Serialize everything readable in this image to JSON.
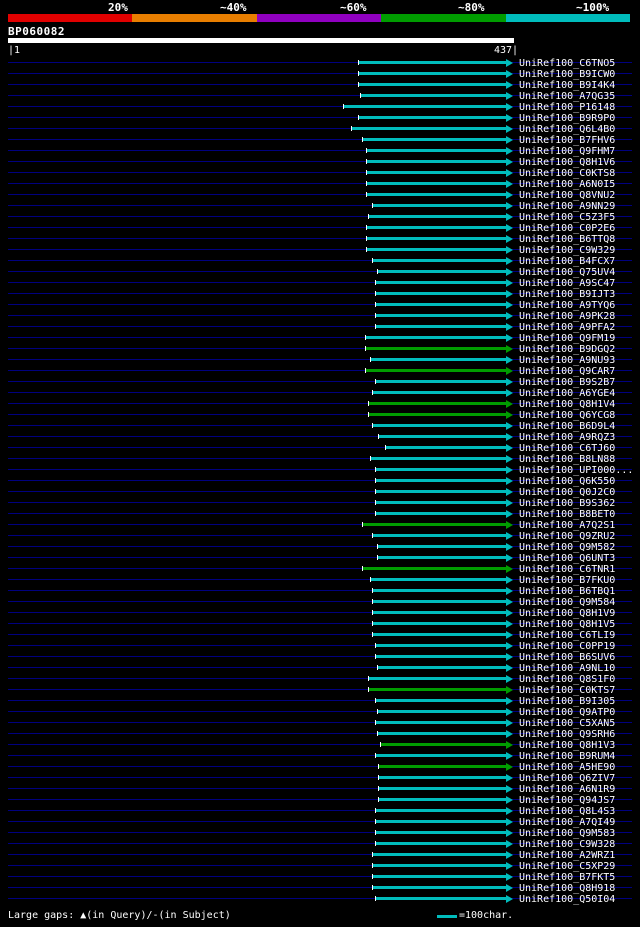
{
  "header": {
    "scale": {
      "labels": [
        "20%",
        "~40%",
        "~60%",
        "~80%",
        "~100%"
      ],
      "colors": [
        "#e10000",
        "#e87e00",
        "#9000c0",
        "#009c00",
        "#00bcbc"
      ]
    },
    "query_id": "BP060082",
    "axis": {
      "start_label": "|1",
      "end_label": "437|"
    }
  },
  "footer": {
    "gaps_note": "Large gaps: ▲(in Query)/-(in Subject)",
    "scale_note": "=100char."
  },
  "chart_data": {
    "type": "bar",
    "orientation": "horizontal",
    "title": "BP060082",
    "query_length": 437,
    "x_range": [
      1,
      437
    ],
    "arrow_at_end": true,
    "identity_bins": [
      "20%",
      "~40%",
      "~60%",
      "~80%",
      "~100%"
    ],
    "identity_colors": {
      "20%": "#e10000",
      "~40%": "#e87e00",
      "~60%": "#9000c0",
      "~80%": "#009c00",
      "~100%": "#00bcbc"
    },
    "hits": [
      {
        "id": "UniRef100_C6TNO5",
        "start": 302,
        "end": 437,
        "identity": "~100%"
      },
      {
        "id": "UniRef100_B9ICW0",
        "start": 302,
        "end": 437,
        "identity": "~100%"
      },
      {
        "id": "UniRef100_B9I4K4",
        "start": 302,
        "end": 437,
        "identity": "~100%"
      },
      {
        "id": "UniRef100_A7QG35",
        "start": 303,
        "end": 437,
        "identity": "~100%"
      },
      {
        "id": "UniRef100_P16148",
        "start": 289,
        "end": 437,
        "identity": "~100%"
      },
      {
        "id": "UniRef100_B9R9P0",
        "start": 302,
        "end": 437,
        "identity": "~100%"
      },
      {
        "id": "UniRef100_Q6L4B0",
        "start": 296,
        "end": 437,
        "identity": "~100%"
      },
      {
        "id": "UniRef100_B7FHV6",
        "start": 305,
        "end": 437,
        "identity": "~100%"
      },
      {
        "id": "UniRef100_Q9FHM7",
        "start": 309,
        "end": 437,
        "identity": "~100%"
      },
      {
        "id": "UniRef100_Q8H1V6",
        "start": 309,
        "end": 437,
        "identity": "~100%"
      },
      {
        "id": "UniRef100_C0KTS8",
        "start": 309,
        "end": 437,
        "identity": "~100%"
      },
      {
        "id": "UniRef100_A6N0I5",
        "start": 309,
        "end": 437,
        "identity": "~100%"
      },
      {
        "id": "UniRef100_Q8VNU2",
        "start": 309,
        "end": 437,
        "identity": "~100%"
      },
      {
        "id": "UniRef100_A9NN29",
        "start": 314,
        "end": 437,
        "identity": "~100%"
      },
      {
        "id": "UniRef100_C5Z3F5",
        "start": 310,
        "end": 437,
        "identity": "~100%"
      },
      {
        "id": "UniRef100_C0P2E6",
        "start": 309,
        "end": 437,
        "identity": "~100%"
      },
      {
        "id": "UniRef100_B6TTQ8",
        "start": 309,
        "end": 437,
        "identity": "~100%"
      },
      {
        "id": "UniRef100_C9W329",
        "start": 309,
        "end": 437,
        "identity": "~100%"
      },
      {
        "id": "UniRef100_B4FCX7",
        "start": 314,
        "end": 437,
        "identity": "~100%"
      },
      {
        "id": "UniRef100_Q75UV4",
        "start": 318,
        "end": 437,
        "identity": "~100%"
      },
      {
        "id": "UniRef100_A9SC47",
        "start": 316,
        "end": 437,
        "identity": "~100%"
      },
      {
        "id": "UniRef100_B9IJT3",
        "start": 316,
        "end": 437,
        "identity": "~100%"
      },
      {
        "id": "UniRef100_A9TYQ6",
        "start": 316,
        "end": 437,
        "identity": "~100%"
      },
      {
        "id": "UniRef100_A9PK28",
        "start": 316,
        "end": 437,
        "identity": "~100%"
      },
      {
        "id": "UniRef100_A9PFA2",
        "start": 316,
        "end": 437,
        "identity": "~100%"
      },
      {
        "id": "UniRef100_Q9FM19",
        "start": 308,
        "end": 437,
        "identity": "~100%"
      },
      {
        "id": "UniRef100_B9DGQ2",
        "start": 308,
        "end": 437,
        "identity": "~80%"
      },
      {
        "id": "UniRef100_A9NU93",
        "start": 312,
        "end": 437,
        "identity": "~100%"
      },
      {
        "id": "UniRef100_Q9CAR7",
        "start": 308,
        "end": 437,
        "identity": "~80%"
      },
      {
        "id": "UniRef100_B9S2B7",
        "start": 316,
        "end": 437,
        "identity": "~100%"
      },
      {
        "id": "UniRef100_A6YGE4",
        "start": 314,
        "end": 437,
        "identity": "~100%"
      },
      {
        "id": "UniRef100_Q8H1V4",
        "start": 310,
        "end": 437,
        "identity": "~80%"
      },
      {
        "id": "UniRef100_Q6YCG8",
        "start": 310,
        "end": 437,
        "identity": "~80%"
      },
      {
        "id": "UniRef100_B6D9L4",
        "start": 314,
        "end": 437,
        "identity": "~100%"
      },
      {
        "id": "UniRef100_A9RQZ3",
        "start": 319,
        "end": 437,
        "identity": "~100%"
      },
      {
        "id": "UniRef100_C6TJ60",
        "start": 325,
        "end": 437,
        "identity": "~100%"
      },
      {
        "id": "UniRef100_B8LN88",
        "start": 312,
        "end": 437,
        "identity": "~100%"
      },
      {
        "id": "UniRef100_UPI000...",
        "start": 316,
        "end": 437,
        "identity": "~100%"
      },
      {
        "id": "UniRef100_Q6K550",
        "start": 316,
        "end": 437,
        "identity": "~100%"
      },
      {
        "id": "UniRef100_Q0J2C0",
        "start": 316,
        "end": 437,
        "identity": "~100%"
      },
      {
        "id": "UniRef100_B9S362",
        "start": 316,
        "end": 437,
        "identity": "~100%"
      },
      {
        "id": "UniRef100_B8BET0",
        "start": 316,
        "end": 437,
        "identity": "~100%"
      },
      {
        "id": "UniRef100_A7Q2S1",
        "start": 305,
        "end": 437,
        "identity": "~80%"
      },
      {
        "id": "UniRef100_Q9ZRU2",
        "start": 314,
        "end": 437,
        "identity": "~100%"
      },
      {
        "id": "UniRef100_Q9M582",
        "start": 318,
        "end": 437,
        "identity": "~100%"
      },
      {
        "id": "UniRef100_Q6UNT3",
        "start": 318,
        "end": 437,
        "identity": "~100%"
      },
      {
        "id": "UniRef100_C6TNR1",
        "start": 305,
        "end": 437,
        "identity": "~80%"
      },
      {
        "id": "UniRef100_B7FKU0",
        "start": 312,
        "end": 437,
        "identity": "~100%"
      },
      {
        "id": "UniRef100_B6TBQ1",
        "start": 314,
        "end": 437,
        "identity": "~100%"
      },
      {
        "id": "UniRef100_Q9M584",
        "start": 314,
        "end": 437,
        "identity": "~100%"
      },
      {
        "id": "UniRef100_Q8H1V9",
        "start": 314,
        "end": 437,
        "identity": "~100%"
      },
      {
        "id": "UniRef100_Q8H1V5",
        "start": 314,
        "end": 437,
        "identity": "~100%"
      },
      {
        "id": "UniRef100_C6TLI9",
        "start": 314,
        "end": 437,
        "identity": "~100%"
      },
      {
        "id": "UniRef100_C0PP19",
        "start": 316,
        "end": 437,
        "identity": "~100%"
      },
      {
        "id": "UniRef100_B6SUV6",
        "start": 316,
        "end": 437,
        "identity": "~100%"
      },
      {
        "id": "UniRef100_A9NL10",
        "start": 318,
        "end": 437,
        "identity": "~100%"
      },
      {
        "id": "UniRef100_Q8S1F0",
        "start": 310,
        "end": 437,
        "identity": "~100%"
      },
      {
        "id": "UniRef100_C0KTS7",
        "start": 310,
        "end": 437,
        "identity": "~80%"
      },
      {
        "id": "UniRef100_B9I305",
        "start": 316,
        "end": 437,
        "identity": "~100%"
      },
      {
        "id": "UniRef100_Q9ATP0",
        "start": 318,
        "end": 437,
        "identity": "~100%"
      },
      {
        "id": "UniRef100_C5XAN5",
        "start": 316,
        "end": 437,
        "identity": "~100%"
      },
      {
        "id": "UniRef100_Q9SRH6",
        "start": 318,
        "end": 437,
        "identity": "~100%"
      },
      {
        "id": "UniRef100_Q8H1V3",
        "start": 321,
        "end": 437,
        "identity": "~80%"
      },
      {
        "id": "UniRef100_B9RUM4",
        "start": 316,
        "end": 437,
        "identity": "~100%"
      },
      {
        "id": "UniRef100_A5HE90",
        "start": 319,
        "end": 437,
        "identity": "~80%"
      },
      {
        "id": "UniRef100_Q6ZIV7",
        "start": 319,
        "end": 437,
        "identity": "~100%"
      },
      {
        "id": "UniRef100_A6N1R9",
        "start": 319,
        "end": 437,
        "identity": "~100%"
      },
      {
        "id": "UniRef100_Q94JS7",
        "start": 319,
        "end": 437,
        "identity": "~100%"
      },
      {
        "id": "UniRef100_Q8L4S3",
        "start": 316,
        "end": 437,
        "identity": "~100%"
      },
      {
        "id": "UniRef100_A7QI49",
        "start": 316,
        "end": 437,
        "identity": "~100%"
      },
      {
        "id": "UniRef100_Q9M583",
        "start": 316,
        "end": 437,
        "identity": "~100%"
      },
      {
        "id": "UniRef100_C9W328",
        "start": 316,
        "end": 437,
        "identity": "~100%"
      },
      {
        "id": "UniRef100_A2WRZ1",
        "start": 314,
        "end": 437,
        "identity": "~100%"
      },
      {
        "id": "UniRef100_C5XP29",
        "start": 314,
        "end": 437,
        "identity": "~100%"
      },
      {
        "id": "UniRef100_B7FKT5",
        "start": 314,
        "end": 437,
        "identity": "~100%"
      },
      {
        "id": "UniRef100_Q8H918",
        "start": 314,
        "end": 437,
        "identity": "~100%"
      },
      {
        "id": "UniRef100_Q50I04",
        "start": 316,
        "end": 437,
        "identity": "~100%"
      }
    ]
  }
}
